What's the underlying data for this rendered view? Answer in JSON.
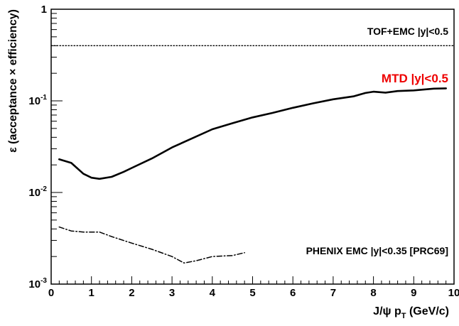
{
  "chart_data": {
    "type": "line",
    "title": "",
    "xlabel": "J/ψ p",
    "xlabel_subscript": "T",
    "xlabel_suffix": " (GeV/c)",
    "ylabel": "ε (acceptance × efficiency)",
    "xlim": [
      0,
      10
    ],
    "ylim": [
      0.001,
      1
    ],
    "yscale": "log",
    "grid": false,
    "legend": "none",
    "x_ticks": [
      {
        "value": 0,
        "label": "0"
      },
      {
        "value": 1,
        "label": "1"
      },
      {
        "value": 2,
        "label": "2"
      },
      {
        "value": 3,
        "label": "3"
      },
      {
        "value": 4,
        "label": "4"
      },
      {
        "value": 5,
        "label": "5"
      },
      {
        "value": 6,
        "label": "6"
      },
      {
        "value": 7,
        "label": "7"
      },
      {
        "value": 8,
        "label": "8"
      },
      {
        "value": 9,
        "label": "9"
      },
      {
        "value": 10,
        "label": "10"
      }
    ],
    "y_ticks": [
      {
        "value": 1,
        "base": "1",
        "exp": ""
      },
      {
        "value": 0.1,
        "base": "10",
        "exp": "-1"
      },
      {
        "value": 0.01,
        "base": "10",
        "exp": "-2"
      },
      {
        "value": 0.001,
        "base": "10",
        "exp": "-3"
      }
    ],
    "series": [
      {
        "name": "MTD |y|<0.5",
        "color": "#000000",
        "label_color": "#ee0000",
        "style": "solid",
        "x": [
          0.2,
          0.5,
          0.8,
          1.0,
          1.2,
          1.5,
          1.8,
          2.0,
          2.5,
          3.0,
          3.5,
          4.0,
          4.5,
          5.0,
          5.5,
          6.0,
          6.5,
          7.0,
          7.5,
          7.8,
          8.0,
          8.3,
          8.6,
          9.0,
          9.5,
          9.8
        ],
        "y": [
          0.023,
          0.021,
          0.016,
          0.0145,
          0.0141,
          0.0148,
          0.0168,
          0.0185,
          0.0235,
          0.031,
          0.039,
          0.049,
          0.057,
          0.066,
          0.074,
          0.084,
          0.094,
          0.104,
          0.112,
          0.122,
          0.126,
          0.123,
          0.128,
          0.13,
          0.136,
          0.137
        ]
      },
      {
        "name": "TOF+EMC |y|<0.5",
        "color": "#000000",
        "style": "dotted",
        "x": [
          0,
          10
        ],
        "y": [
          0.4,
          0.4
        ]
      },
      {
        "name": "PHENIX EMC |y|<0.35 [PRC69]",
        "color": "#000000",
        "style": "dash-dot",
        "x": [
          0.2,
          0.5,
          0.8,
          1.2,
          1.5,
          2.0,
          2.5,
          3.0,
          3.3,
          3.6,
          4.0,
          4.5,
          4.8
        ],
        "y": [
          0.0042,
          0.0038,
          0.0037,
          0.0037,
          0.0033,
          0.0028,
          0.0024,
          0.002,
          0.0017,
          0.0018,
          0.002,
          0.00205,
          0.0022
        ]
      }
    ]
  }
}
